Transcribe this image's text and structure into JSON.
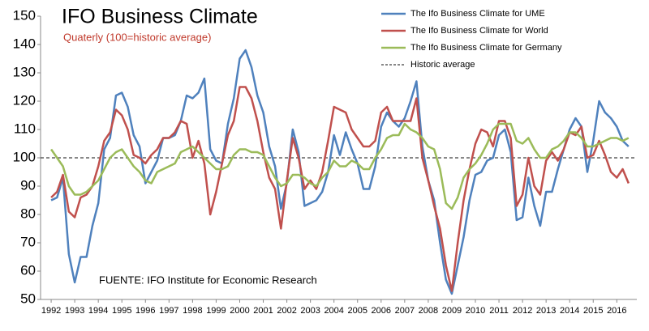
{
  "chart_data": {
    "type": "line",
    "title": "IFO Business Climate",
    "subtitle": "Quaterly (100=historic average)",
    "source": "FUENTE: IFO Institute for Economic Research",
    "x": [
      1992,
      1992.25,
      1992.5,
      1992.75,
      1993,
      1993.25,
      1993.5,
      1993.75,
      1994,
      1994.25,
      1994.5,
      1994.75,
      1995,
      1995.25,
      1995.5,
      1995.75,
      1996,
      1996.25,
      1996.5,
      1996.75,
      1997,
      1997.25,
      1997.5,
      1997.75,
      1998,
      1998.25,
      1998.5,
      1998.75,
      1999,
      1999.25,
      1999.5,
      1999.75,
      2000,
      2000.25,
      2000.5,
      2000.75,
      2001,
      2001.25,
      2001.5,
      2001.75,
      2002,
      2002.25,
      2002.5,
      2002.75,
      2003,
      2003.25,
      2003.5,
      2003.75,
      2004,
      2004.25,
      2004.5,
      2004.75,
      2005,
      2005.25,
      2005.5,
      2005.75,
      2006,
      2006.25,
      2006.5,
      2006.75,
      2007,
      2007.25,
      2007.5,
      2007.75,
      2008,
      2008.25,
      2008.5,
      2008.75,
      2009,
      2009.25,
      2009.5,
      2009.75,
      2010,
      2010.25,
      2010.5,
      2010.75,
      2011,
      2011.25,
      2011.5,
      2011.75,
      2012,
      2012.25,
      2012.5,
      2012.75,
      2013,
      2013.25,
      2013.5,
      2013.75,
      2014,
      2014.25,
      2014.5,
      2014.75,
      2015,
      2015.25,
      2015.5,
      2015.75,
      2016,
      2016.25,
      2016.5
    ],
    "xlim": [
      1991.55,
      2016.85
    ],
    "xticks": [
      1992,
      1993,
      1994,
      1995,
      1996,
      1997,
      1998,
      1999,
      2000,
      2001,
      2002,
      2003,
      2004,
      2005,
      2006,
      2007,
      2008,
      2009,
      2010,
      2011,
      2012,
      2013,
      2014,
      2015,
      2016
    ],
    "ylim": [
      50,
      150
    ],
    "yticks": [
      50,
      60,
      70,
      80,
      90,
      100,
      110,
      120,
      130,
      140,
      150
    ],
    "grid": false,
    "legend": "top-right",
    "series": [
      {
        "name": "The Ifo Business Climate for UME",
        "color": "#4f81bd",
        "values": [
          85,
          86,
          93,
          66,
          56,
          65,
          65,
          76,
          84,
          103,
          107,
          122,
          123,
          118,
          108,
          104,
          91,
          95,
          99,
          107,
          107,
          108,
          113,
          122,
          121,
          123,
          128,
          103,
          99,
          98,
          112,
          121,
          135,
          138,
          132,
          122,
          116,
          104,
          97,
          82,
          91,
          110,
          102,
          83,
          84,
          85,
          88,
          95,
          108,
          101,
          109,
          103,
          98,
          89,
          89,
          97,
          111,
          116,
          113,
          111,
          114,
          120,
          127,
          104,
          92,
          85,
          70,
          57,
          52,
          62,
          72,
          85,
          94,
          95,
          99,
          100,
          108,
          110,
          102,
          78,
          79,
          93,
          83,
          76,
          88,
          88,
          96,
          103,
          110,
          114,
          111,
          95,
          106,
          120,
          116,
          114,
          111,
          106,
          104
        ]
      },
      {
        "name": "The Ifo Business Climate for World",
        "color": "#c0504d",
        "values": [
          86,
          88,
          94,
          81,
          79,
          86,
          87,
          90,
          97,
          106,
          109,
          117,
          115,
          110,
          101,
          100,
          98,
          101,
          103,
          107,
          107,
          109,
          113,
          112,
          100,
          106,
          98,
          80,
          88,
          98,
          108,
          113,
          125,
          125,
          121,
          113,
          102,
          93,
          89,
          75,
          92,
          107,
          100,
          89,
          92,
          89,
          95,
          106,
          118,
          117,
          116,
          110,
          107,
          104,
          104,
          106,
          116,
          118,
          113,
          113,
          113,
          113,
          121,
          100,
          92,
          83,
          75,
          62,
          53,
          70,
          85,
          96,
          105,
          110,
          109,
          104,
          113,
          113,
          107,
          83,
          87,
          100,
          90,
          87,
          99,
          102,
          99,
          103,
          109,
          108,
          111,
          100,
          101,
          106,
          101,
          95,
          93,
          96,
          91
        ]
      },
      {
        "name": "The Ifo Business Climate for Germany",
        "color": "#9bbb59",
        "values": [
          103,
          100,
          97,
          90,
          87,
          87,
          88,
          90,
          92,
          96,
          100,
          102,
          103,
          100,
          97,
          95,
          92,
          91,
          95,
          96,
          97,
          98,
          102,
          103,
          104,
          102,
          100,
          98,
          96,
          96,
          97,
          101,
          103,
          103,
          102,
          102,
          101,
          97,
          93,
          90,
          91,
          94,
          94,
          93,
          91,
          90,
          93,
          95,
          99,
          97,
          97,
          99,
          98,
          96,
          96,
          100,
          103,
          107,
          108,
          108,
          112,
          110,
          109,
          107,
          104,
          103,
          96,
          84,
          82,
          86,
          93,
          96,
          98,
          101,
          105,
          110,
          112,
          112,
          112,
          106,
          105,
          107,
          103,
          100,
          100,
          103,
          104,
          106,
          109,
          109,
          107,
          104,
          104,
          105,
          106,
          107,
          107,
          106,
          107
        ]
      }
    ],
    "hlines": [
      {
        "name": "Historic average",
        "value": 100,
        "color": "#404040"
      }
    ]
  }
}
